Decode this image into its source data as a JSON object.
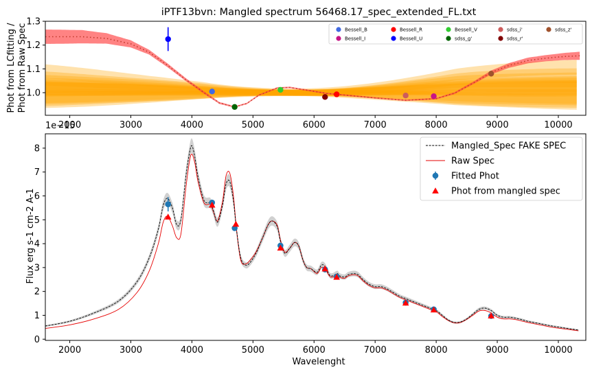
{
  "chart_data": [
    {
      "type": "line",
      "title": "iPTF13bvn: Mangled spectrum 56468.17_spec_extended_FL.txt",
      "xlabel": "",
      "ylabel": "Phot from LCfitting / Phot from Raw Spec",
      "ylabel_lines": [
        "Phot from LCfitting /",
        "Phot from Raw Spec"
      ],
      "xlim": [
        1600,
        10450
      ],
      "ylim": [
        0.905,
        1.3
      ],
      "xticks": [
        2000,
        3000,
        4000,
        5000,
        6000,
        7000,
        8000,
        9000,
        10000
      ],
      "yticks": [
        1.0,
        1.1,
        1.2,
        1.3
      ],
      "ytick_labels": [
        "1.0",
        "1.1",
        "1.2",
        "1.3"
      ],
      "ratio_curve": {
        "color": "#d62728",
        "x": [
          1700,
          2200,
          2600,
          3000,
          3300,
          3600,
          3900,
          4200,
          4450,
          4700,
          4900,
          5100,
          5400,
          5600,
          5900,
          6200,
          6500,
          7000,
          7500,
          8000,
          8300,
          8600,
          8900,
          9200,
          9500,
          9800,
          10100,
          10350
        ],
        "y": [
          1.235,
          1.235,
          1.228,
          1.205,
          1.17,
          1.115,
          1.055,
          1.0,
          0.957,
          0.94,
          0.955,
          0.99,
          1.02,
          1.022,
          1.01,
          0.997,
          0.99,
          0.978,
          0.968,
          0.975,
          0.998,
          1.04,
          1.085,
          1.115,
          1.135,
          1.145,
          1.152,
          1.155
        ],
        "band_halfwidth": [
          0.03,
          0.028,
          0.022,
          0.015,
          0.01,
          0.008,
          0.006,
          0.005,
          0.004,
          0.003,
          0.003,
          0.003,
          0.003,
          0.003,
          0.003,
          0.003,
          0.003,
          0.003,
          0.003,
          0.003,
          0.004,
          0.005,
          0.008,
          0.01,
          0.012,
          0.013,
          0.015,
          0.017
        ]
      },
      "fitted_points": [
        {
          "name": "Bessell_B",
          "x": 4330,
          "y": 1.005,
          "yerr": 0.008,
          "color": "#4169e1"
        },
        {
          "name": "Bessell_I",
          "x": 7960,
          "y": 0.985,
          "yerr": 0.004,
          "color": "#c71585"
        },
        {
          "name": "Bessell_R",
          "x": 6370,
          "y": 0.993,
          "yerr": 0.003,
          "color": "#ff0000"
        },
        {
          "name": "Bessell_U",
          "x": 3610,
          "y": 1.225,
          "yerr": 0.05,
          "color": "#0000ff"
        },
        {
          "name": "Bessell_V",
          "x": 5450,
          "y": 1.012,
          "yerr": 0.004,
          "color": "#32cd32"
        },
        {
          "name": "sdss_g'",
          "x": 4700,
          "y": 0.94,
          "yerr": 0.006,
          "color": "#006400"
        },
        {
          "name": "sdss_i'",
          "x": 7500,
          "y": 0.988,
          "yerr": 0.004,
          "color": "#cd5c5c"
        },
        {
          "name": "sdss_r'",
          "x": 6180,
          "y": 0.982,
          "yerr": 0.004,
          "color": "#800000"
        },
        {
          "name": "sdss_z'",
          "x": 8900,
          "y": 1.08,
          "yerr": 0.012,
          "color": "#a0522d"
        }
      ],
      "legend_placement": "top-right",
      "legend_columns": 5
    },
    {
      "type": "line",
      "title": "",
      "xlabel": "Wavelenght",
      "ylabel": "Flux erg s-1 cm-2 A-1",
      "offset_text": "1e−15",
      "xlim": [
        1600,
        10450
      ],
      "ylim": [
        -0.05,
        8.6
      ],
      "xticks": [
        2000,
        3000,
        4000,
        5000,
        6000,
        7000,
        8000,
        9000,
        10000
      ],
      "yticks": [
        0,
        1,
        2,
        3,
        4,
        5,
        6,
        7,
        8
      ],
      "series": [
        {
          "name": "Mangled_Spec FAKE SPEC",
          "style": "dashed",
          "color": "#000000",
          "x": [
            1600,
            2000,
            2400,
            2800,
            3100,
            3300,
            3450,
            3530,
            3600,
            3680,
            3750,
            3820,
            3900,
            3960,
            4000,
            4050,
            4100,
            4200,
            4300,
            4350,
            4420,
            4500,
            4560,
            4620,
            4680,
            4730,
            4800,
            4880,
            4950,
            5050,
            5150,
            5250,
            5320,
            5400,
            5450,
            5520,
            5600,
            5680,
            5750,
            5820,
            5880,
            5950,
            6050,
            6120,
            6180,
            6250,
            6300,
            6380,
            6420,
            6500,
            6560,
            6650,
            6720,
            6800,
            6900,
            7000,
            7100,
            7200,
            7300,
            7400,
            7500,
            7600,
            7700,
            7800,
            7900,
            8000,
            8100,
            8200,
            8300,
            8400,
            8500,
            8600,
            8700,
            8800,
            8900,
            9000,
            9100,
            9200,
            9300,
            9400,
            9500,
            9700,
            9900,
            10100,
            10330
          ],
          "y": [
            0.55,
            0.75,
            1.1,
            1.6,
            2.4,
            3.4,
            4.6,
            5.6,
            5.9,
            5.5,
            4.8,
            5.0,
            6.8,
            7.8,
            8.1,
            7.6,
            6.8,
            5.8,
            5.7,
            5.4,
            4.9,
            5.6,
            6.5,
            6.6,
            5.8,
            4.6,
            3.4,
            3.1,
            3.2,
            3.6,
            4.2,
            4.8,
            4.95,
            4.7,
            4.1,
            3.6,
            3.8,
            4.05,
            3.9,
            3.3,
            3.0,
            2.95,
            2.8,
            3.1,
            3.05,
            2.7,
            2.65,
            2.75,
            2.65,
            2.6,
            2.7,
            2.75,
            2.7,
            2.5,
            2.3,
            2.2,
            2.2,
            2.1,
            1.95,
            1.8,
            1.7,
            1.6,
            1.5,
            1.4,
            1.3,
            1.2,
            1.0,
            0.8,
            0.7,
            0.72,
            0.85,
            1.05,
            1.25,
            1.3,
            1.2,
            1.0,
            0.92,
            0.92,
            0.88,
            0.82,
            0.75,
            0.65,
            0.55,
            0.47,
            0.38
          ]
        },
        {
          "name": "Raw Spec",
          "style": "solid",
          "color": "#e60000",
          "x": [
            1600,
            2000,
            2400,
            2800,
            3100,
            3300,
            3450,
            3530,
            3600,
            3680,
            3750,
            3820,
            3900,
            3960,
            4000,
            4050,
            4100,
            4200,
            4300,
            4350,
            4420,
            4500,
            4560,
            4620,
            4680,
            4730,
            4800,
            4880,
            4950,
            5050,
            5150,
            5250,
            5320,
            5400,
            5450,
            5520,
            5600,
            5680,
            5750,
            5820,
            5880,
            5950,
            6050,
            6120,
            6180,
            6250,
            6300,
            6380,
            6420,
            6500,
            6560,
            6650,
            6720,
            6800,
            6900,
            7000,
            7100,
            7200,
            7300,
            7400,
            7500,
            7600,
            7700,
            7800,
            7900,
            8000,
            8100,
            8200,
            8300,
            8400,
            8500,
            8600,
            8700,
            8800,
            8900,
            9000,
            9100,
            9200,
            9300,
            9400,
            9500,
            9700,
            9900,
            10100,
            10330
          ],
          "y": [
            0.45,
            0.6,
            0.85,
            1.25,
            1.95,
            2.85,
            4.0,
            4.9,
            5.15,
            4.75,
            4.25,
            4.4,
            6.3,
            7.45,
            7.75,
            7.35,
            6.6,
            5.7,
            5.65,
            5.35,
            4.95,
            5.75,
            6.85,
            6.95,
            6.0,
            4.6,
            3.3,
            3.15,
            3.3,
            3.65,
            4.2,
            4.8,
            4.95,
            4.75,
            4.15,
            3.65,
            3.8,
            4.05,
            3.9,
            3.3,
            3.0,
            2.95,
            2.75,
            3.0,
            2.95,
            2.65,
            2.6,
            2.7,
            2.6,
            2.55,
            2.65,
            2.7,
            2.65,
            2.45,
            2.25,
            2.15,
            2.15,
            2.05,
            1.9,
            1.75,
            1.65,
            1.55,
            1.45,
            1.35,
            1.25,
            1.15,
            0.95,
            0.78,
            0.68,
            0.7,
            0.83,
            1.0,
            1.18,
            1.2,
            1.1,
            0.92,
            0.85,
            0.85,
            0.82,
            0.76,
            0.7,
            0.6,
            0.5,
            0.43,
            0.35
          ]
        }
      ],
      "fitted_phot": {
        "name": "Fitted Phot",
        "color": "#1f77b4",
        "x": [
          3610,
          4330,
          4700,
          5450,
          6180,
          6370,
          7500,
          7960,
          8900
        ],
        "y": [
          5.65,
          5.72,
          4.65,
          3.92,
          2.92,
          2.62,
          1.53,
          1.25,
          0.97
        ],
        "yerr": [
          0.3,
          0.1,
          0.1,
          0.08,
          0.06,
          0.05,
          0.05,
          0.05,
          0.05
        ]
      },
      "mangled_phot": {
        "name": "Phot from mangled spec",
        "color": "#ff0000",
        "x": [
          3610,
          4330,
          4720,
          5450,
          6180,
          6370,
          7500,
          7960,
          8900
        ],
        "y": [
          5.12,
          5.62,
          4.82,
          3.82,
          2.95,
          2.6,
          1.52,
          1.23,
          0.98
        ]
      },
      "legend_placement": "top-right"
    }
  ]
}
